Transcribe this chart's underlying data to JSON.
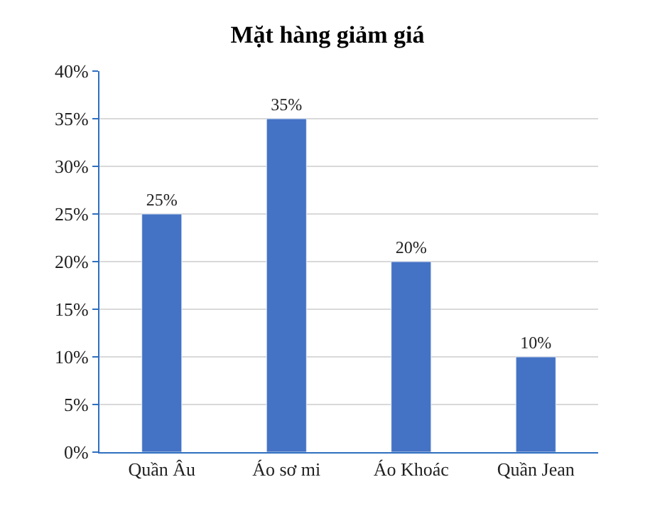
{
  "chart_data": {
    "type": "bar",
    "title": "Mặt hàng giảm giá",
    "categories": [
      "Quần Âu",
      "Áo sơ mi",
      "Áo Khoác",
      "Quần Jean"
    ],
    "values": [
      25,
      35,
      20,
      10
    ],
    "value_labels": [
      "25%",
      "35%",
      "20%",
      "10%"
    ],
    "color": "#4472c4",
    "ylim": [
      0,
      40
    ],
    "yticks": [
      {
        "value": 0,
        "label": "0%"
      },
      {
        "value": 5,
        "label": "5%"
      },
      {
        "value": 10,
        "label": "10%"
      },
      {
        "value": 15,
        "label": "15%"
      },
      {
        "value": 20,
        "label": "20%"
      },
      {
        "value": 25,
        "label": "25%"
      },
      {
        "value": 30,
        "label": "30%"
      },
      {
        "value": 35,
        "label": "35%"
      },
      {
        "value": 40,
        "label": "40%"
      }
    ],
    "grid": "y"
  }
}
